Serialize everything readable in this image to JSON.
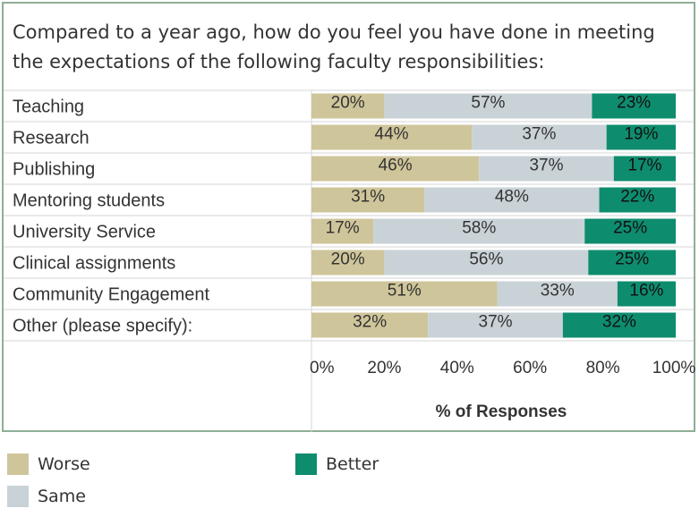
{
  "chart_data": {
    "type": "bar",
    "orientation": "horizontal",
    "stacked": true,
    "title": "Compared to a year ago, how do you feel you have done in meeting the expectations of the following faculty responsibilities:",
    "xlabel": "% of Responses",
    "ylabel": "",
    "xlim": [
      0,
      100
    ],
    "x_ticks": [
      "0%",
      "20%",
      "40%",
      "60%",
      "80%",
      "100%"
    ],
    "categories": [
      "Teaching",
      "Research",
      "Publishing",
      "Mentoring students",
      "University Service",
      "Clinical assignments",
      "Community Engagement",
      "Other (please specify):"
    ],
    "series": [
      {
        "name": "Worse",
        "color": "#cfc59a",
        "values": [
          20,
          44,
          46,
          31,
          17,
          20,
          51,
          32
        ]
      },
      {
        "name": "Same",
        "color": "#c9d2d7",
        "values": [
          57,
          37,
          37,
          48,
          58,
          56,
          33,
          37
        ]
      },
      {
        "name": "Better",
        "color": "#0e8c6e",
        "values": [
          23,
          19,
          17,
          22,
          25,
          25,
          16,
          32
        ]
      }
    ],
    "grid": false,
    "legend_position": "bottom"
  }
}
